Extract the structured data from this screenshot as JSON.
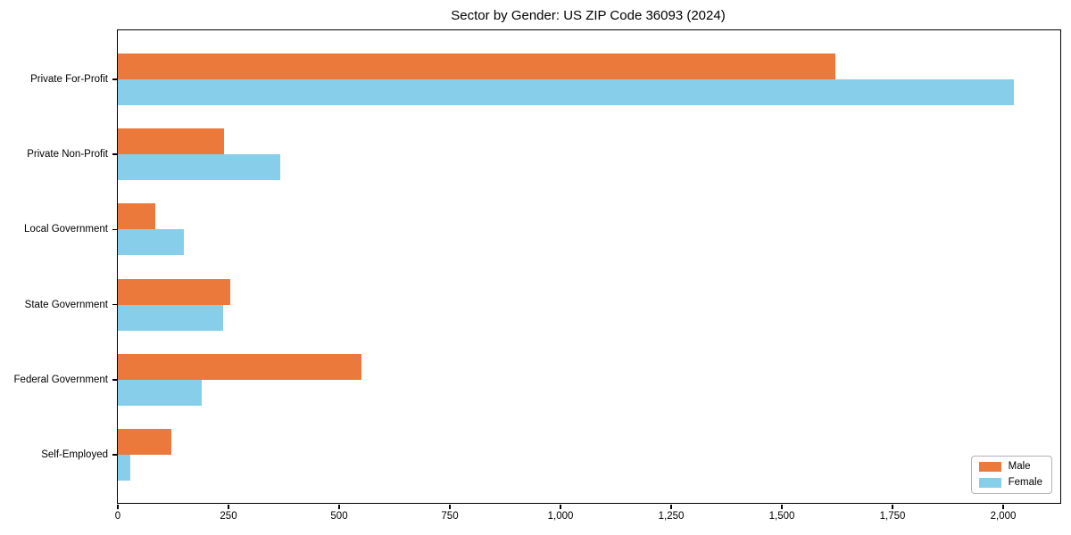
{
  "chart_data": {
    "type": "bar",
    "orientation": "horizontal",
    "title": "Sector by Gender: US ZIP Code 36093 (2024)",
    "categories": [
      "Private For-Profit",
      "Private Non-Profit",
      "Local Government",
      "State Government",
      "Federal Government",
      "Self-Employed"
    ],
    "series": [
      {
        "name": "Male",
        "color": "#EB793B",
        "values": [
          1620,
          240,
          85,
          255,
          550,
          120
        ]
      },
      {
        "name": "Female",
        "color": "#87CEEB",
        "values": [
          2025,
          367,
          150,
          238,
          190,
          28
        ]
      }
    ],
    "xlabel": "",
    "ylabel": "",
    "xlim": [
      0,
      2129
    ],
    "xticks": [
      0,
      250,
      500,
      750,
      1000,
      1250,
      1500,
      1750,
      2000
    ],
    "grid": false,
    "legend_position": "lower right"
  }
}
